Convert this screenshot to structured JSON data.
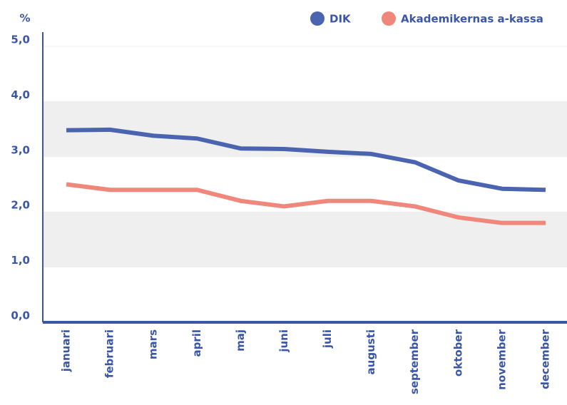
{
  "chart_data": {
    "type": "line",
    "y_label": "%",
    "categories": [
      "januari",
      "februari",
      "mars",
      "april",
      "maj",
      "juni",
      "juli",
      "augusti",
      "september",
      "oktober",
      "november",
      "december"
    ],
    "series": [
      {
        "name": "DIK",
        "color": "#4a64b0",
        "values": [
          3.48,
          3.49,
          3.38,
          3.33,
          3.15,
          3.14,
          3.09,
          3.05,
          2.9,
          2.57,
          2.42,
          2.4
        ]
      },
      {
        "name": "Akademikernas a-kassa",
        "color": "#f0877b",
        "values": [
          2.5,
          2.4,
          2.4,
          2.4,
          2.2,
          2.1,
          2.2,
          2.2,
          2.1,
          1.9,
          1.8,
          1.8
        ]
      }
    ],
    "ylim": [
      0,
      5
    ],
    "yticks": [
      {
        "value": 0,
        "label": "0,0"
      },
      {
        "value": 1,
        "label": "1,0"
      },
      {
        "value": 2,
        "label": "2,0"
      },
      {
        "value": 3,
        "label": "3,0"
      },
      {
        "value": 4,
        "label": "4,0"
      },
      {
        "value": 5,
        "label": "5,0"
      }
    ],
    "grid": true,
    "legend": "top-right"
  }
}
